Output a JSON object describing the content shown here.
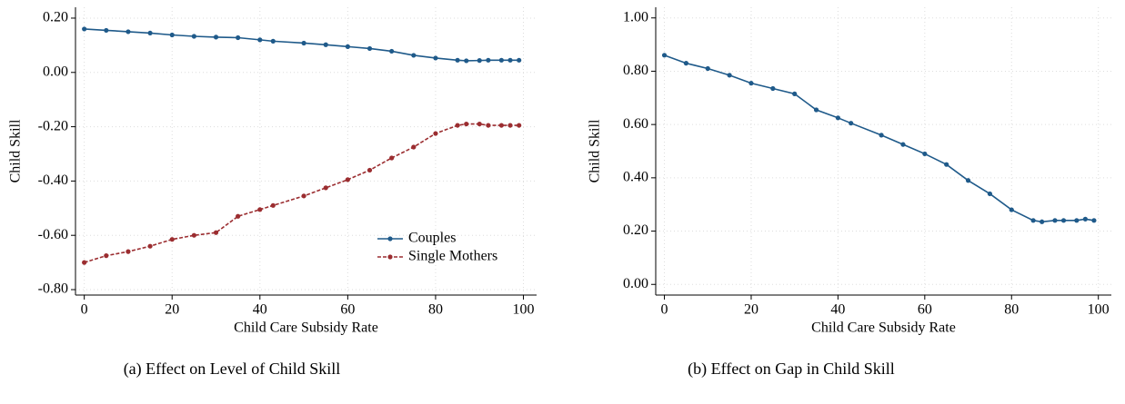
{
  "chart_data": [
    {
      "type": "line",
      "caption": "(a) Effect on Level of Child Skill",
      "xlabel": "Child Care Subsidy Rate",
      "ylabel": "Child Skill",
      "x": [
        0,
        5,
        10,
        15,
        20,
        25,
        30,
        35,
        40,
        43,
        50,
        55,
        60,
        65,
        70,
        75,
        80,
        85,
        87,
        90,
        92,
        95,
        97,
        99
      ],
      "series": [
        {
          "name": "Couples",
          "color": "#1f5a8a",
          "linestyle": "solid",
          "values": [
            0.16,
            0.155,
            0.15,
            0.145,
            0.138,
            0.133,
            0.13,
            0.128,
            0.12,
            0.115,
            0.108,
            0.102,
            0.095,
            0.088,
            0.078,
            0.063,
            0.053,
            0.045,
            0.043,
            0.044,
            0.045,
            0.045,
            0.045,
            0.045
          ]
        },
        {
          "name": "Single Mothers",
          "color": "#9b2d30",
          "linestyle": "dashed",
          "values": [
            -0.7,
            -0.675,
            -0.66,
            -0.64,
            -0.615,
            -0.6,
            -0.59,
            -0.53,
            -0.505,
            -0.49,
            -0.455,
            -0.425,
            -0.395,
            -0.36,
            -0.315,
            -0.275,
            -0.225,
            -0.195,
            -0.19,
            -0.19,
            -0.195,
            -0.195,
            -0.195,
            -0.195
          ]
        }
      ],
      "xlim": [
        -2,
        103
      ],
      "xticks": [
        0,
        20,
        40,
        60,
        80,
        100
      ],
      "ylim": [
        -0.82,
        0.24
      ],
      "yticks": [
        {
          "value": -0.8,
          "label": "-0.80"
        },
        {
          "value": -0.6,
          "label": "-0.60"
        },
        {
          "value": -0.4,
          "label": "-0.40"
        },
        {
          "value": -0.2,
          "label": "-0.20"
        },
        {
          "value": 0,
          "label": "0.00"
        },
        {
          "value": 0.2,
          "label": "0.20"
        }
      ],
      "grid": true,
      "legend": "lower right"
    },
    {
      "type": "line",
      "caption": "(b) Effect on Gap in Child Skill",
      "xlabel": "Child Care Subsidy Rate",
      "ylabel": "Child Skill",
      "x": [
        0,
        5,
        10,
        15,
        20,
        25,
        30,
        35,
        40,
        43,
        50,
        55,
        60,
        65,
        70,
        75,
        80,
        85,
        87,
        90,
        92,
        95,
        97,
        99
      ],
      "series": [
        {
          "color": "#1f5a8a",
          "linestyle": "solid",
          "values": [
            0.86,
            0.83,
            0.81,
            0.785,
            0.755,
            0.735,
            0.715,
            0.655,
            0.625,
            0.605,
            0.56,
            0.525,
            0.49,
            0.45,
            0.39,
            0.34,
            0.28,
            0.24,
            0.235,
            0.24,
            0.24,
            0.24,
            0.245,
            0.24
          ]
        }
      ],
      "xlim": [
        -2,
        103
      ],
      "xticks": [
        0,
        20,
        40,
        60,
        80,
        100
      ],
      "ylim": [
        -0.04,
        1.04
      ],
      "yticks": [
        {
          "value": 0,
          "label": "0.00"
        },
        {
          "value": 0.2,
          "label": "0.20"
        },
        {
          "value": 0.4,
          "label": "0.40"
        },
        {
          "value": 0.6,
          "label": "0.60"
        },
        {
          "value": 0.8,
          "label": "0.80"
        },
        {
          "value": 1,
          "label": "1.00"
        }
      ],
      "grid": true
    }
  ]
}
